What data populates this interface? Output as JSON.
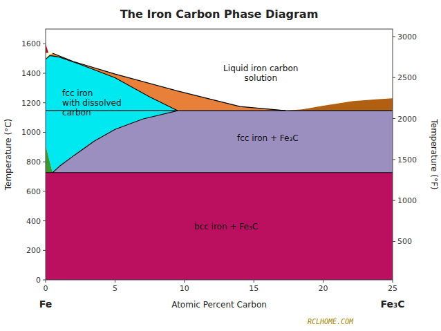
{
  "chart_data": {
    "type": "area",
    "title": "The Iron Carbon Phase Diagram",
    "xlabel": "Atomic Percent Carbon",
    "ylabel": "Temperature (°C)",
    "y2label": "Temperature (°F)",
    "xlim": [
      0,
      25
    ],
    "ylim": [
      0,
      1700
    ],
    "y2lim": [
      32,
      3092
    ],
    "xticks": [
      0,
      5,
      10,
      15,
      20,
      25
    ],
    "yticks": [
      0,
      200,
      400,
      600,
      800,
      1000,
      1200,
      1400,
      1600
    ],
    "y2ticks": [
      500,
      1000,
      1500,
      2000,
      2500,
      3000
    ],
    "grid": false,
    "series": [
      {
        "type": "area",
        "color": "#bb1060",
        "x": [
          0,
          25,
          25,
          0
        ],
        "values": [
          0,
          0,
          727,
          727
        ]
      },
      {
        "type": "area",
        "color": "#9b8fc0",
        "x": [
          0.5,
          1.0,
          2.0,
          3.5,
          5.0,
          7.0,
          9.5,
          9.5,
          25,
          25,
          0.5
        ],
        "values": [
          727,
          770,
          840,
          940,
          1020,
          1090,
          1147,
          1147,
          1147,
          727,
          727
        ]
      },
      {
        "type": "area",
        "color": "#00e8f0",
        "x": [
          0,
          0,
          0.0,
          0.3,
          1.0,
          2.5,
          5.0,
          7.5,
          9.5,
          9.5,
          7.0,
          5.0,
          3.5,
          2.0,
          1.0,
          0.5,
          0
        ],
        "values": [
          912,
          1495,
          1495,
          1520,
          1510,
          1460,
          1370,
          1240,
          1147,
          1147,
          1090,
          1020,
          940,
          840,
          770,
          727,
          912
        ]
      },
      {
        "type": "area",
        "color": "#e8803a",
        "x": [
          0.5,
          2.0,
          5.0,
          9.5,
          14.0,
          17.3,
          17.3,
          9.5,
          9.5,
          7.5,
          5.0,
          2.5,
          1.0,
          0.3,
          0.0,
          0.0
        ],
        "values": [
          1536,
          1480,
          1395,
          1280,
          1175,
          1147,
          1147,
          1147,
          1147,
          1240,
          1370,
          1460,
          1510,
          1520,
          1495,
          1495
        ]
      },
      {
        "type": "area",
        "color": "#b06010",
        "x": [
          17.3,
          18.5,
          20.0,
          22.0,
          24.0,
          25.0,
          25.0,
          17.3
        ],
        "values": [
          1147,
          1155,
          1180,
          1210,
          1225,
          1230,
          1147,
          1147
        ]
      },
      {
        "type": "area",
        "color": "#3a9a30",
        "x": [
          0,
          0.5,
          0.0
        ],
        "values": [
          727,
          727,
          912
        ]
      },
      {
        "type": "area",
        "color": "#e8e000",
        "x": [
          0.0,
          0.5,
          0.3,
          0.0
        ],
        "values": [
          1495,
          1536,
          1530,
          1495
        ]
      },
      {
        "type": "area",
        "color": "#aa1010",
        "x": [
          0.0,
          0.0,
          0.2
        ],
        "values": [
          1538,
          1600,
          1538
        ]
      },
      {
        "type": "line",
        "color": "#000000",
        "x": [
          0,
          25
        ],
        "values": [
          727,
          727
        ]
      },
      {
        "type": "line",
        "color": "#000000",
        "x": [
          0,
          25
        ],
        "values": [
          1147,
          1147
        ]
      },
      {
        "type": "line",
        "color": "#000000",
        "x": [
          0.5,
          1.0,
          2.0,
          3.5,
          5.0,
          7.0,
          9.5
        ],
        "values": [
          727,
          770,
          840,
          940,
          1020,
          1090,
          1147
        ]
      },
      {
        "type": "line",
        "color": "#000000",
        "x": [
          0.0,
          0.3,
          1.0,
          2.5,
          5.0,
          7.5,
          9.5
        ],
        "values": [
          1495,
          1520,
          1510,
          1460,
          1370,
          1240,
          1147
        ]
      },
      {
        "type": "line",
        "color": "#000000",
        "x": [
          0.5,
          2.0,
          5.0,
          9.5,
          14.0,
          17.3
        ],
        "values": [
          1536,
          1480,
          1395,
          1280,
          1175,
          1147
        ]
      }
    ],
    "annotations": [
      {
        "text": "Liquid iron carbon\nsolution",
        "x": 15.5,
        "y": 1400
      },
      {
        "text": "fcc iron\nwith dissolved\ncarbon",
        "x": 1.2,
        "y": 1200
      },
      {
        "text": "fcc iron + Fe₃C",
        "x": 16,
        "y": 960
      },
      {
        "text": "bcc iron + Fe₃C",
        "x": 13,
        "y": 360
      },
      {
        "text": "Fe",
        "x": 0
      },
      {
        "text": "Fe₃C",
        "x": 25
      },
      {
        "text": "RCLHOME.COM"
      }
    ]
  }
}
